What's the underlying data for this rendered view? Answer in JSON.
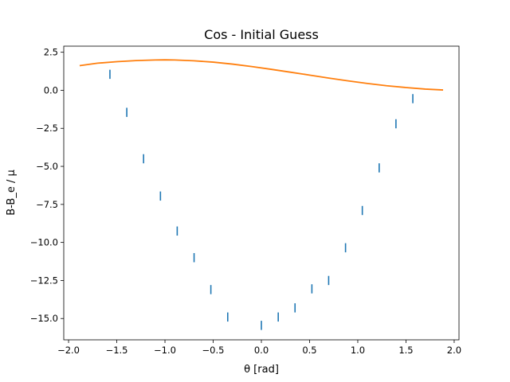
{
  "chart_data": {
    "type": "scatter",
    "title": "Cos - Initial Guess",
    "xlabel": "θ [rad]",
    "ylabel": "B-B_e / μ",
    "xlim": [
      -2.05,
      2.05
    ],
    "ylim": [
      -16.4,
      2.9
    ],
    "grid": false,
    "xticks": [
      -2.0,
      -1.5,
      -1.0,
      -0.5,
      0.0,
      0.5,
      1.0,
      1.5,
      2.0
    ],
    "xtick_labels": [
      "−2.0",
      "−1.5",
      "−1.0",
      "−0.5",
      "0.0",
      "0.5",
      "1.0",
      "1.5",
      "2.0"
    ],
    "yticks": [
      2.5,
      0.0,
      -2.5,
      -5.0,
      -7.5,
      -10.0,
      -12.5,
      -15.0
    ],
    "ytick_labels": [
      "2.5",
      "0.0",
      "−2.5",
      "−5.0",
      "−7.5",
      "−10.0",
      "−12.5",
      "−15.0"
    ],
    "colors": {
      "data": "#1f77b4",
      "guess": "#ff7f0e"
    },
    "series": [
      {
        "kind": "errorbar",
        "x": [
          -1.571,
          -1.396,
          -1.222,
          -1.047,
          -0.873,
          -0.698,
          -0.524,
          -0.349,
          0.0,
          0.175,
          0.349,
          0.524,
          0.698,
          0.873,
          1.047,
          1.222,
          1.396,
          1.571
        ],
        "y": [
          1.05,
          -1.45,
          -4.5,
          -6.95,
          -9.25,
          -11.0,
          -13.1,
          -14.9,
          -15.45,
          -14.9,
          -14.3,
          -13.05,
          -12.5,
          -10.35,
          -7.9,
          -5.1,
          -2.2,
          -0.55
        ],
        "yerr": [
          0.3,
          0.3,
          0.3,
          0.3,
          0.3,
          0.3,
          0.3,
          0.3,
          0.3,
          0.3,
          0.3,
          0.3,
          0.3,
          0.3,
          0.3,
          0.3,
          0.3,
          0.3
        ]
      },
      {
        "kind": "line",
        "x": [
          -1.885,
          -1.7,
          -1.5,
          -1.3,
          -1.1,
          -1.0,
          -0.9,
          -0.7,
          -0.5,
          -0.3,
          -0.1,
          0.1,
          0.3,
          0.5,
          0.7,
          0.9,
          1.1,
          1.3,
          1.5,
          1.7,
          1.885
        ],
        "y": [
          1.62,
          1.78,
          1.88,
          1.95,
          1.99,
          2.0,
          1.99,
          1.94,
          1.85,
          1.72,
          1.56,
          1.38,
          1.19,
          1.0,
          0.8,
          0.62,
          0.45,
          0.3,
          0.18,
          0.08,
          0.02
        ]
      }
    ]
  }
}
